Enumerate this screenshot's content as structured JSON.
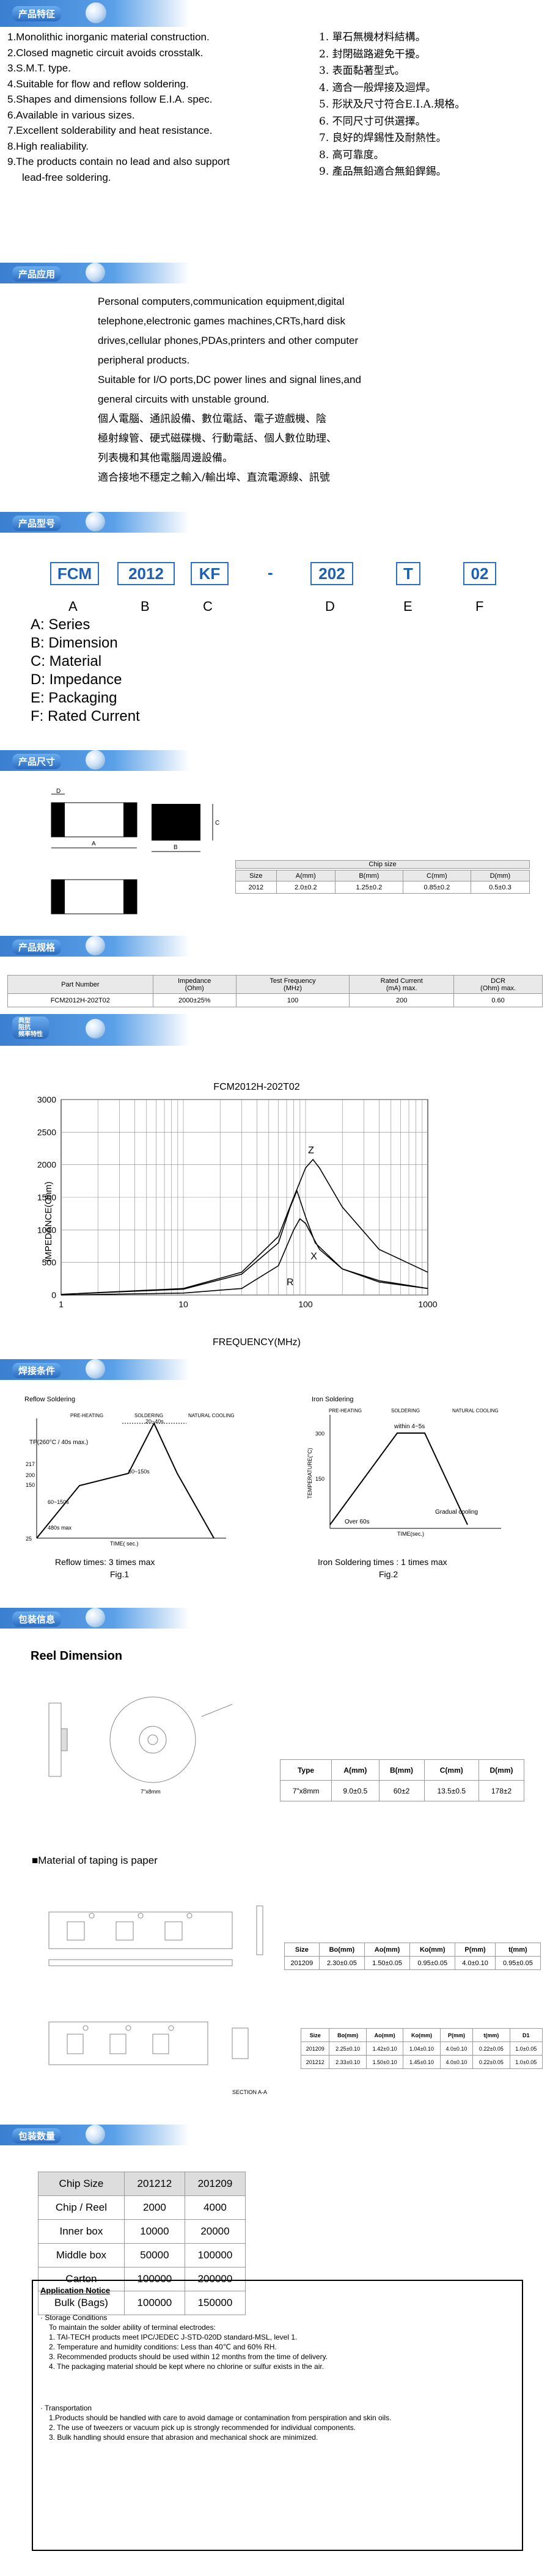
{
  "sections": {
    "features": "产品特征",
    "applications": "产品应用",
    "part_number": "产品型号",
    "dimensions": "产品尺寸",
    "specs": "产品规格",
    "typical_curve": [
      "典型",
      "阻抗",
      "频率特性"
    ],
    "soldering": "焊接条件",
    "packaging": "包装信息",
    "quantity": "包装数量"
  },
  "features_en": [
    "1.Monolithic inorganic material construction.",
    "2.Closed magnetic circuit avoids crosstalk.",
    "3.S.M.T. type.",
    "4.Suitable for flow and reflow soldering.",
    "5.Shapes and dimensions follow E.I.A. spec.",
    "6.Available in various sizes.",
    "7.Excellent solderability and heat resistance.",
    "8.High realiability.",
    "9.The products contain no lead and also support",
    "lead-free soldering."
  ],
  "features_cn": [
    "1. 單石無機材料結構。",
    "2. 封閉磁路避免干擾。",
    "3. 表面黏著型式。",
    "4. 適合一般焊接及迴焊。",
    "5. 形狀及尺寸符合E.I.A.規格。",
    "6. 不同尺寸可供選擇。",
    "7. 良好的焊錫性及耐熱性。",
    "8. 高可靠度。",
    "9. 產品無鉛適合無鉛銲錫。"
  ],
  "applications": [
    "Personal computers,communication equipment,digital",
    "telephone,electronic games machines,CRTs,hard disk",
    "drives,cellular phones,PDAs,printers and other computer",
    "peripheral products.",
    "Suitable for I/O ports,DC power lines and signal lines,and",
    "general circuits with unstable ground.",
    "個人電腦、通訊設備、數位電話、電子遊戲機、陰",
    "極射線管、硬式磁碟機、行動電話、個人數位助理、",
    "列表機和其他電腦周邊設備。",
    "適合接地不穩定之輸入/輸出埠、直流電源線、訊號"
  ],
  "part_number": {
    "boxes": [
      "FCM",
      "2012",
      "KF",
      "-",
      "202",
      "T",
      "02"
    ],
    "letters": [
      "A",
      "B",
      "C",
      "D",
      "E",
      "F"
    ],
    "legend": [
      "A: Series",
      "B: Dimension",
      "C: Material",
      "D: Impedance",
      "E: Packaging",
      "F: Rated Current"
    ]
  },
  "dimensions": {
    "labels": [
      "D",
      "A",
      "B",
      "C"
    ],
    "table_title": "Chip size",
    "headers": [
      "Size",
      "A(mm)",
      "B(mm)",
      "C(mm)",
      "D(mm)"
    ],
    "row": [
      "2012",
      "2.0±0.2",
      "1.25±0.2",
      "0.85±0.2",
      "0.5±0.3"
    ]
  },
  "specs": {
    "headers": [
      "Part Number",
      "Impedance\n(Ohm)",
      "Test Frequency\n(MHz)",
      "Rated Current\n(mA) max.",
      "DCR\n(Ohm) max."
    ],
    "row": [
      "FCM2012H-202T02",
      "2000±25%",
      "100",
      "200",
      "0.60"
    ]
  },
  "chart_data": {
    "type": "line",
    "title": "FCM2012H-202T02",
    "xlabel": "FREQUENCY(MHz)",
    "ylabel": "IMPEDANCE(Ohm)",
    "xscale": "log",
    "xlim": [
      1,
      1000
    ],
    "ylim": [
      0,
      3000
    ],
    "xticks": [
      "1",
      "10",
      "100",
      "1000"
    ],
    "yticks": [
      "0",
      "500",
      "1000",
      "1500",
      "2000",
      "2500",
      "3000"
    ],
    "grid": true,
    "series": [
      {
        "name": "Z",
        "x": [
          1,
          10,
          30,
          60,
          80,
          100,
          115,
          130,
          200,
          400,
          1000
        ],
        "values": [
          10,
          100,
          350,
          900,
          1500,
          1950,
          2080,
          1950,
          1350,
          700,
          350
        ]
      },
      {
        "name": "R",
        "x": [
          1,
          10,
          30,
          60,
          80,
          90,
          100,
          130,
          200,
          400,
          1000
        ],
        "values": [
          0,
          30,
          100,
          450,
          1000,
          1170,
          1100,
          700,
          400,
          220,
          100
        ]
      },
      {
        "name": "X",
        "x": [
          1,
          10,
          30,
          60,
          75,
          85,
          100,
          120,
          200,
          400,
          1000
        ],
        "values": [
          10,
          90,
          320,
          800,
          1350,
          1600,
          1200,
          800,
          400,
          200,
          100
        ]
      }
    ]
  },
  "reflow": {
    "title": "Reflow Soldering",
    "phases": [
      "PRE-HEATING",
      "SOLDERING",
      "NATURAL COOLING"
    ],
    "tp": "TP(260°C / 40s max.)",
    "y_ticks": [
      "217",
      "200",
      "150",
      "25"
    ],
    "t1": "20~40s",
    "t2": "60~150s",
    "t3": "60~150s",
    "t4": "480s max",
    "xlabel": "TIME( sec.)",
    "caption": "Reflow times: 3 times max",
    "fig": "Fig.1"
  },
  "iron": {
    "title": "Iron Soldering",
    "phases": [
      "PRE-HEATING",
      "SOLDERING",
      "NATURAL COOLING"
    ],
    "within": "within 4~5s",
    "ylabel": "TEMPERATURE(°C)",
    "y_ticks": [
      "300",
      "150"
    ],
    "over": "Over 60s",
    "gradual": "Gradual  cooling",
    "xlabel": "TIME(sec.)",
    "caption": "Iron Soldering times : 1 times max",
    "fig": "Fig.2"
  },
  "reel": {
    "heading": "Reel Dimension",
    "headers": [
      "Type",
      "A(mm)",
      "B(mm)",
      "C(mm)",
      "D(mm)"
    ],
    "row": [
      "7\"x8mm",
      "9.0±0.5",
      "60±2",
      "13.5±0.5",
      "178±2"
    ],
    "reel_caption": "7\"x8mm",
    "material_note": "■Material of taping is paper"
  },
  "tape1": {
    "headers": [
      "Size",
      "Bo(mm)",
      "Ao(mm)",
      "Ko(mm)",
      "P(mm)",
      "t(mm)"
    ],
    "row": [
      "201209",
      "2.30±0.05",
      "1.50±0.05",
      "0.95±0.05",
      "4.0±0.10",
      "0.95±0.05"
    ]
  },
  "tape2": {
    "headers": [
      "Size",
      "Bo(mm)",
      "Ao(mm)",
      "Ko(mm)",
      "P(mm)",
      "t(mm)",
      "D1"
    ],
    "rows": [
      [
        "201209",
        "2.25±0.10",
        "1.42±0.10",
        "1.04±0.10",
        "4.0±0.10",
        "0.22±0.05",
        "1.0±0.05"
      ],
      [
        "201212",
        "2.33±0.10",
        "1.50±0.10",
        "1.45±0.10",
        "4.0±0.10",
        "0.22±0.05",
        "1.0±0.05"
      ]
    ],
    "section": "SECTION A-A"
  },
  "quantity": {
    "headers": [
      "Chip Size",
      "201212",
      "201209"
    ],
    "rows": [
      [
        "Chip / Reel",
        "2000",
        "4000"
      ],
      [
        "Inner box",
        "10000",
        "20000"
      ],
      [
        "Middle box",
        "50000",
        "100000"
      ],
      [
        "Carton",
        "100000",
        "200000"
      ],
      [
        "Bulk (Bags)",
        "100000",
        "150000"
      ]
    ]
  },
  "notice": {
    "title": "Application Notice",
    "storage_title": "Storage Conditions",
    "storage_intro": "To maintain the solder ability of terminal electrodes:",
    "storage": [
      "1. TAI-TECH products meet IPC/JEDEC J-STD-020D standard-MSL, level 1.",
      "2. Temperature and humidity conditions: Less than 40℃ and 60% RH.",
      "3. Recommended products should be used within 12 months from the time of delivery.",
      "4. The packaging material should be kept where no chlorine or sulfur exists in the air."
    ],
    "transport_title": "Transportation",
    "transport": [
      "1.Products should be handled with care to avoid damage or contamination from perspiration and skin oils.",
      "2. The use of tweezers or vacuum pick up is strongly recommended for individual components.",
      "3. Bulk handling should ensure that abrasion and mechanical shock are minimized."
    ]
  }
}
